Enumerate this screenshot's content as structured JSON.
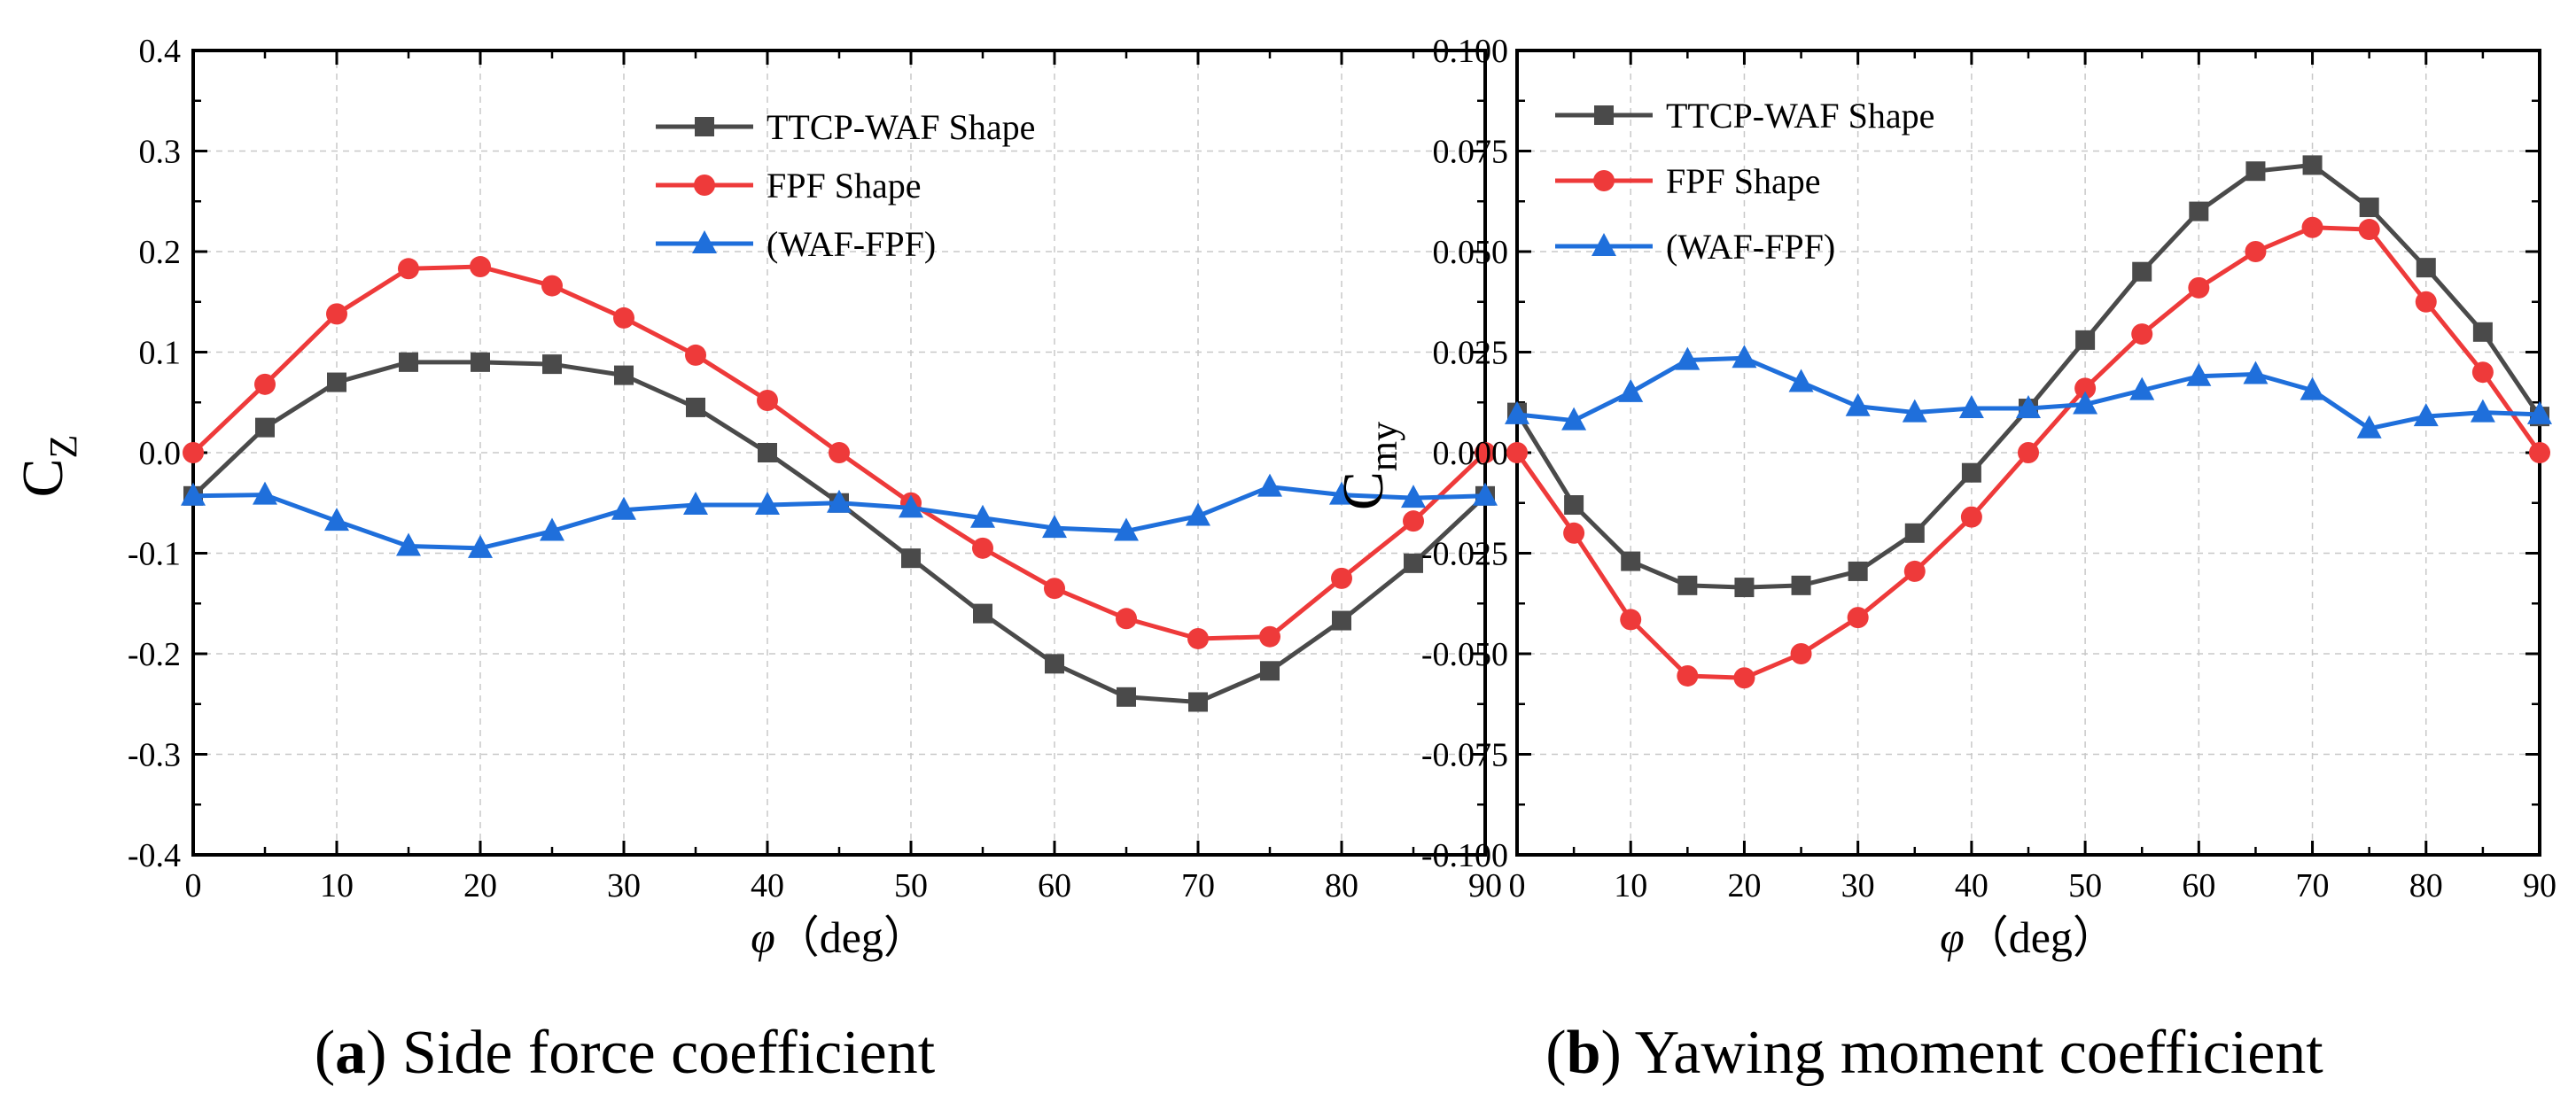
{
  "chart_data": [
    {
      "type": "line",
      "caption_letter": "a",
      "caption_text": "Side force coefficient",
      "xlabel_symbol": "φ",
      "xlabel_unit": "（deg）",
      "ylabel_main": "C",
      "ylabel_sub": "Z",
      "xlim": [
        0,
        90
      ],
      "ylim": [
        -0.4,
        0.4
      ],
      "xticks": [
        0,
        10,
        20,
        30,
        40,
        50,
        60,
        70,
        80,
        90
      ],
      "xtick_labels": [
        "0",
        "10",
        "20",
        "30",
        "40",
        "50",
        "60",
        "70",
        "80",
        "90"
      ],
      "yticks": [
        -0.4,
        -0.3,
        -0.2,
        -0.1,
        0.0,
        0.1,
        0.2,
        0.3,
        0.4
      ],
      "ytick_labels": [
        "-0.4",
        "-0.3",
        "-0.2",
        "-0.1",
        "0.0",
        "0.1",
        "0.2",
        "0.3",
        "0.4"
      ],
      "grid": true,
      "legend_position": "top-right",
      "x": [
        0,
        5,
        10,
        15,
        20,
        25,
        30,
        35,
        40,
        45,
        50,
        55,
        60,
        65,
        70,
        75,
        80,
        85,
        90
      ],
      "series": [
        {
          "name": "TTCP-WAF Shape",
          "color": "#4a4a4a",
          "marker": "square",
          "values": [
            -0.043,
            0.025,
            0.07,
            0.09,
            0.09,
            0.088,
            0.077,
            0.045,
            0.0,
            -0.05,
            -0.105,
            -0.16,
            -0.21,
            -0.243,
            -0.248,
            -0.217,
            -0.167,
            -0.11,
            -0.043
          ]
        },
        {
          "name": "FPF Shape",
          "color": "#ee3a3a",
          "marker": "circle",
          "values": [
            0.0,
            0.068,
            0.138,
            0.183,
            0.185,
            0.166,
            0.134,
            0.097,
            0.052,
            0.0,
            -0.05,
            -0.095,
            -0.135,
            -0.165,
            -0.185,
            -0.183,
            -0.125,
            -0.068,
            0.0
          ]
        },
        {
          "name": "(WAF-FPF)",
          "color": "#1f6fdb",
          "marker": "triangle",
          "values": [
            -0.043,
            -0.042,
            -0.068,
            -0.093,
            -0.095,
            -0.078,
            -0.057,
            -0.052,
            -0.052,
            -0.05,
            -0.055,
            -0.065,
            -0.075,
            -0.078,
            -0.063,
            -0.034,
            -0.042,
            -0.045,
            -0.043
          ]
        }
      ]
    },
    {
      "type": "line",
      "caption_letter": "b",
      "caption_text": "Yawing moment coefficient",
      "xlabel_symbol": "φ",
      "xlabel_unit": "（deg）",
      "ylabel_main": "C",
      "ylabel_sub": "my",
      "xlim": [
        0,
        90
      ],
      "ylim": [
        -0.1,
        0.1
      ],
      "xticks": [
        0,
        10,
        20,
        30,
        40,
        50,
        60,
        70,
        80,
        90
      ],
      "xtick_labels": [
        "0",
        "10",
        "20",
        "30",
        "40",
        "50",
        "60",
        "70",
        "80",
        "90"
      ],
      "yticks": [
        -0.1,
        -0.075,
        -0.05,
        -0.025,
        0.0,
        0.025,
        0.05,
        0.075,
        0.1
      ],
      "ytick_labels": [
        "-0.100",
        "-0.075",
        "-0.050",
        "-0.025",
        "0.000",
        "0.025",
        "0.050",
        "0.075",
        "0.100"
      ],
      "grid": true,
      "legend_position": "top-left",
      "x": [
        0,
        5,
        10,
        15,
        20,
        25,
        30,
        35,
        40,
        45,
        50,
        55,
        60,
        65,
        70,
        75,
        80,
        85,
        90
      ],
      "series": [
        {
          "name": "TTCP-WAF Shape",
          "color": "#4a4a4a",
          "marker": "square",
          "values": [
            0.01,
            -0.013,
            -0.027,
            -0.033,
            -0.0335,
            -0.033,
            -0.0295,
            -0.02,
            -0.005,
            0.011,
            0.028,
            0.045,
            0.06,
            0.07,
            0.0715,
            0.061,
            0.046,
            0.03,
            0.009
          ]
        },
        {
          "name": "FPF Shape",
          "color": "#ee3a3a",
          "marker": "circle",
          "values": [
            0.0,
            -0.02,
            -0.0415,
            -0.0555,
            -0.056,
            -0.05,
            -0.041,
            -0.0295,
            -0.016,
            0.0,
            0.016,
            0.0295,
            0.041,
            0.05,
            0.056,
            0.0555,
            0.0375,
            0.02,
            0.0
          ]
        },
        {
          "name": "(WAF-FPF)",
          "color": "#1f6fdb",
          "marker": "triangle",
          "values": [
            0.0095,
            0.008,
            0.015,
            0.023,
            0.0235,
            0.0175,
            0.0115,
            0.01,
            0.011,
            0.011,
            0.012,
            0.0155,
            0.019,
            0.0195,
            0.0155,
            0.006,
            0.009,
            0.01,
            0.0095
          ]
        }
      ]
    }
  ]
}
